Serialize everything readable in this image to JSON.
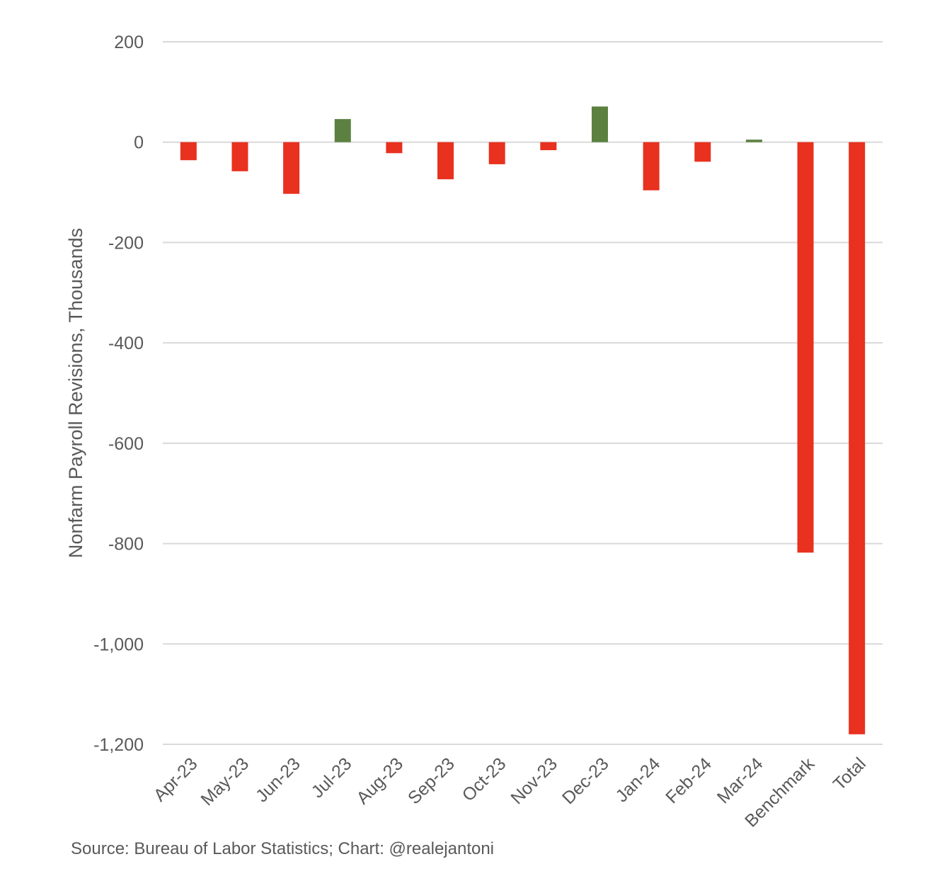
{
  "chart_data": {
    "type": "bar",
    "title": "",
    "xlabel": "",
    "ylabel": "Nonfarm Payroll Revisions, Thousands",
    "ylim": [
      -1200,
      200
    ],
    "yticks": [
      200,
      0,
      -200,
      -400,
      -600,
      -800,
      -1000,
      -1200
    ],
    "ytick_labels": [
      "200",
      "0",
      "-200",
      "-400",
      "-600",
      "-800",
      "-1,000",
      "-1,200"
    ],
    "categories": [
      "Apr-23",
      "May-23",
      "Jun-23",
      "Jul-23",
      "Aug-23",
      "Sep-23",
      "Oct-23",
      "Nov-23",
      "Dec-23",
      "Jan-24",
      "Feb-24",
      "Mar-24",
      "Benchmark",
      "Total"
    ],
    "values": [
      -36,
      -58,
      -103,
      46,
      -22,
      -74,
      -44,
      -16,
      71,
      -96,
      -39,
      5,
      -818,
      -1180
    ],
    "grid": true,
    "colors": {
      "negative": "#e8311f",
      "positive": "#5b8040",
      "grid": "#d9d9d9",
      "text": "#595959"
    }
  },
  "source": "Source: Bureau of Labor Statistics; Chart: @realejantoni"
}
